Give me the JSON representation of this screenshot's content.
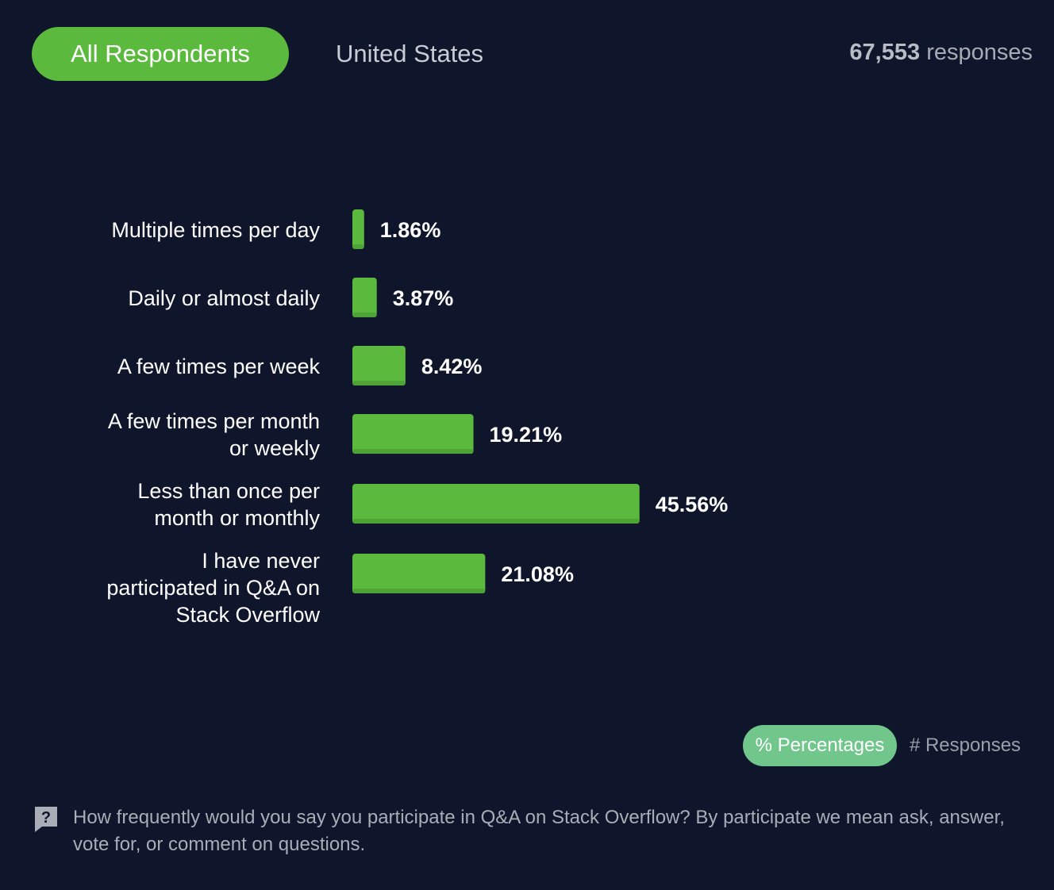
{
  "header": {
    "tab_active": "All Respondents",
    "tab_inactive": "United States",
    "response_count": "67,553",
    "response_suffix": "responses"
  },
  "colors": {
    "background": "#0f152b",
    "bar": "#5bba3e",
    "bar_shade": "#4ea336",
    "toggle_active": "#70c68b"
  },
  "chart_data": {
    "type": "bar",
    "orientation": "horizontal",
    "categories": [
      [
        "Multiple times per day"
      ],
      [
        "Daily or almost daily"
      ],
      [
        "A few times per week"
      ],
      [
        "A few times per month",
        "or weekly"
      ],
      [
        "Less than once per",
        "month or monthly"
      ],
      [
        "I have never",
        "participated in Q&A on",
        "Stack Overflow"
      ]
    ],
    "values": [
      1.86,
      3.87,
      8.42,
      19.21,
      45.56,
      21.08
    ],
    "value_labels": [
      "1.86%",
      "3.87%",
      "8.42%",
      "19.21%",
      "45.56%",
      "21.08%"
    ],
    "unit": "%",
    "xlim": [
      0,
      100
    ],
    "grid": false,
    "legend": false
  },
  "toggle": {
    "active": "% Percentages",
    "inactive": "# Responses"
  },
  "footer": {
    "icon": "question-icon",
    "question": "How frequently would you say you participate in Q&A on Stack Overflow? By participate we mean ask, answer, vote for, or comment on questions."
  }
}
